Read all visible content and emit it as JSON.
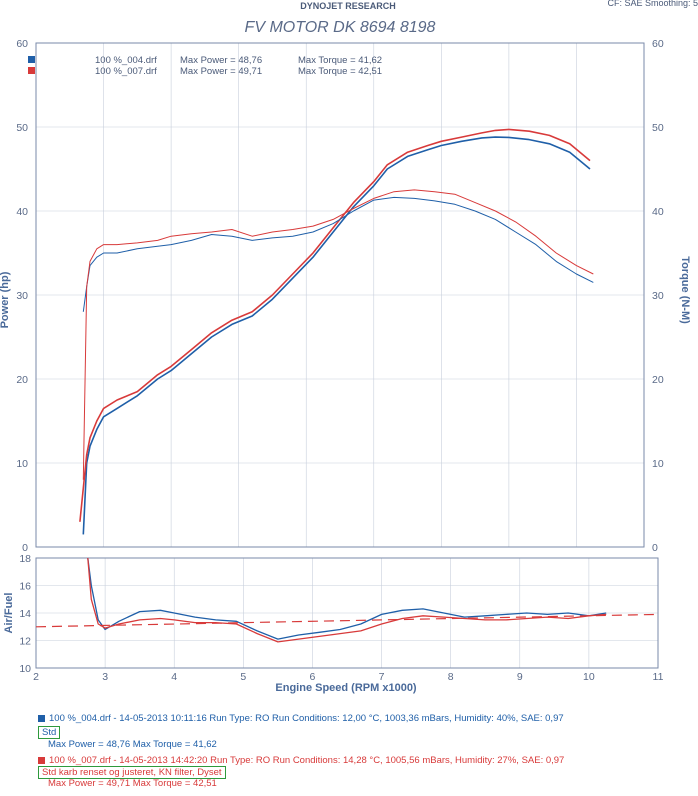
{
  "header": {
    "brand": "DYNOJET RESEARCH",
    "title": "FV MOTOR DK 8694 8198",
    "corner": "CF: SAE  Smoothing: 5"
  },
  "legend": [
    {
      "file": "100 %_004.drf",
      "power": "Max Power = 48,76",
      "torque": "Max Torque = 41,62",
      "color": "#1f5fa8"
    },
    {
      "file": "100 %_007.drf",
      "power": "Max Power = 49,71",
      "torque": "Max Torque = 42,51",
      "color": "#d83a3a"
    }
  ],
  "axis_labels": {
    "power": "Power (hp)",
    "torque": "Torque (N-M)",
    "afr": "Air/Fuel",
    "x": "Engine Speed (RPM x1000)"
  },
  "chart_data": [
    {
      "type": "line",
      "title": "FV MOTOR DK 8694 8198",
      "xlabel": "Engine Speed (RPM x1000)",
      "ylabel": "Power (hp)",
      "y2label": "Torque (N-M)",
      "xlim": [
        2,
        11
      ],
      "ylim": [
        0,
        60
      ],
      "y2lim": [
        0,
        60
      ],
      "xticks": [
        "2",
        "3",
        "4",
        "5",
        "6",
        "7",
        "8",
        "9",
        "10",
        "11"
      ],
      "yticks": [
        "0",
        "10",
        "20",
        "30",
        "40",
        "50",
        "60"
      ],
      "y2ticks": [
        "0",
        "10",
        "20",
        "30",
        "40",
        "50",
        "60"
      ],
      "grid": true,
      "series": [
        {
          "name": "100 %_004.drf",
          "quantity": "power",
          "color": "#1f5fa8",
          "x": [
            2.7,
            2.75,
            2.8,
            2.9,
            3.0,
            3.2,
            3.5,
            3.8,
            4.0,
            4.3,
            4.6,
            4.9,
            5.2,
            5.5,
            5.8,
            6.1,
            6.4,
            6.7,
            7.0,
            7.2,
            7.5,
            7.8,
            8.0,
            8.3,
            8.6,
            8.8,
            9.0,
            9.3,
            9.6,
            9.9,
            10.2
          ],
          "y": [
            1.5,
            10,
            12,
            14,
            15.5,
            16.5,
            18,
            20,
            21,
            23,
            25,
            26.5,
            27.5,
            29.5,
            32,
            34.5,
            37.5,
            40.5,
            43,
            45,
            46.5,
            47.3,
            47.8,
            48.3,
            48.7,
            48.8,
            48.76,
            48.5,
            48,
            47,
            45
          ]
        },
        {
          "name": "100 %_007.drf",
          "quantity": "power",
          "color": "#d83a3a",
          "x": [
            2.65,
            2.75,
            2.8,
            2.9,
            3.0,
            3.2,
            3.5,
            3.8,
            4.0,
            4.3,
            4.6,
            4.9,
            5.2,
            5.5,
            5.8,
            6.1,
            6.4,
            6.7,
            7.0,
            7.2,
            7.5,
            7.8,
            8.0,
            8.3,
            8.6,
            8.8,
            9.0,
            9.3,
            9.6,
            9.9,
            10.2
          ],
          "y": [
            3,
            11,
            13,
            15,
            16.5,
            17.5,
            18.5,
            20.5,
            21.5,
            23.5,
            25.5,
            27,
            28,
            30,
            32.5,
            35,
            38,
            41,
            43.5,
            45.5,
            47,
            47.8,
            48.3,
            48.8,
            49.3,
            49.6,
            49.71,
            49.5,
            49,
            48,
            46
          ]
        },
        {
          "name": "100 %_004.drf",
          "quantity": "torque",
          "color": "#1f5fa8",
          "x": [
            2.7,
            2.75,
            2.8,
            2.9,
            3.0,
            3.2,
            3.5,
            3.8,
            4.0,
            4.3,
            4.6,
            4.9,
            5.2,
            5.5,
            5.8,
            6.1,
            6.4,
            6.7,
            7.0,
            7.3,
            7.6,
            7.9,
            8.2,
            8.5,
            8.8,
            9.1,
            9.4,
            9.7,
            10.0,
            10.25
          ],
          "y": [
            28,
            31,
            33.5,
            34.5,
            35,
            35,
            35.5,
            35.8,
            36,
            36.5,
            37.2,
            37,
            36.5,
            36.8,
            37,
            37.5,
            38.5,
            40,
            41.3,
            41.62,
            41.5,
            41.2,
            40.8,
            40,
            39,
            37.5,
            36,
            34,
            32.5,
            31.5
          ]
        },
        {
          "name": "100 %_007.drf",
          "quantity": "torque",
          "color": "#d83a3a",
          "x": [
            2.7,
            2.75,
            2.8,
            2.9,
            3.0,
            3.2,
            3.5,
            3.8,
            4.0,
            4.3,
            4.6,
            4.9,
            5.2,
            5.5,
            5.8,
            6.1,
            6.4,
            6.7,
            7.0,
            7.3,
            7.6,
            7.9,
            8.2,
            8.5,
            8.8,
            9.1,
            9.4,
            9.7,
            10.0,
            10.25
          ],
          "y": [
            8,
            31,
            34,
            35.5,
            36,
            36,
            36.2,
            36.5,
            37,
            37.3,
            37.5,
            37.8,
            37,
            37.5,
            37.8,
            38.2,
            39,
            40.3,
            41.5,
            42.3,
            42.51,
            42.3,
            42,
            41,
            40,
            38.7,
            37,
            35,
            33.5,
            32.5
          ]
        }
      ]
    },
    {
      "type": "line",
      "ylabel": "Air/Fuel",
      "xlabel": "Engine Speed (RPM x1000)",
      "xlim": [
        2,
        11
      ],
      "ylim": [
        10,
        18
      ],
      "xticks": [
        "2",
        "3",
        "4",
        "5",
        "6",
        "7",
        "8",
        "9",
        "10",
        "11"
      ],
      "yticks": [
        "10",
        "12",
        "14",
        "16",
        "18"
      ],
      "grid": true,
      "series": [
        {
          "name": "100 %_004.drf",
          "color": "#1f5fa8",
          "x": [
            2.75,
            2.8,
            2.9,
            3.0,
            3.2,
            3.5,
            3.8,
            4.0,
            4.3,
            4.6,
            4.9,
            5.2,
            5.5,
            5.8,
            6.1,
            6.4,
            6.7,
            7.0,
            7.3,
            7.6,
            7.9,
            8.2,
            8.5,
            8.8,
            9.1,
            9.4,
            9.7,
            10.0,
            10.25
          ],
          "y": [
            18,
            16,
            13.5,
            12.8,
            13.4,
            14.1,
            14.2,
            14,
            13.7,
            13.5,
            13.4,
            12.7,
            12.1,
            12.4,
            12.6,
            12.8,
            13.2,
            13.9,
            14.2,
            14.3,
            14,
            13.7,
            13.8,
            13.9,
            14,
            13.9,
            14,
            13.8,
            14
          ]
        },
        {
          "name": "100 %_007.drf",
          "color": "#d83a3a",
          "x": [
            2.75,
            2.8,
            2.9,
            3.0,
            3.2,
            3.5,
            3.8,
            4.0,
            4.3,
            4.6,
            4.9,
            5.2,
            5.5,
            5.8,
            6.1,
            6.4,
            6.7,
            7.0,
            7.3,
            7.6,
            7.9,
            8.2,
            8.5,
            8.8,
            9.1,
            9.4,
            9.7,
            10.0,
            10.25
          ],
          "y": [
            18,
            15,
            13.2,
            12.9,
            13.2,
            13.5,
            13.6,
            13.5,
            13.3,
            13.3,
            13.2,
            12.5,
            11.9,
            12.1,
            12.3,
            12.5,
            12.7,
            13.2,
            13.6,
            13.8,
            13.7,
            13.6,
            13.5,
            13.5,
            13.6,
            13.7,
            13.6,
            13.8,
            13.9
          ]
        },
        {
          "name": "",
          "color": "#d83a3a",
          "dashed": true,
          "x": [
            2,
            11
          ],
          "y": [
            13.0,
            13.9
          ]
        }
      ]
    }
  ],
  "footer": {
    "run1": {
      "text": "100 %_004.drf - 14-05-2013 10:11:16  Run Type: RO  Run Conditions: 12,00 °C, 1003,36 mBars,  Humidity:  40%, SAE: 0,97",
      "note": "Std",
      "max": "Max Power = 48,76  Max Torque = 41,62",
      "color": "#1f5fa8"
    },
    "run2": {
      "text": "100 %_007.drf - 14-05-2013 14:42:20  Run Type: RO  Run Conditions: 14,28 °C, 1005,56 mBars,  Humidity:  27%, SAE: 0,97",
      "note": "Std karb renset og justeret, KN filter, Dyset",
      "max": "Max Power = 49,71  Max Torque = 42,51",
      "color": "#d83a3a"
    }
  }
}
